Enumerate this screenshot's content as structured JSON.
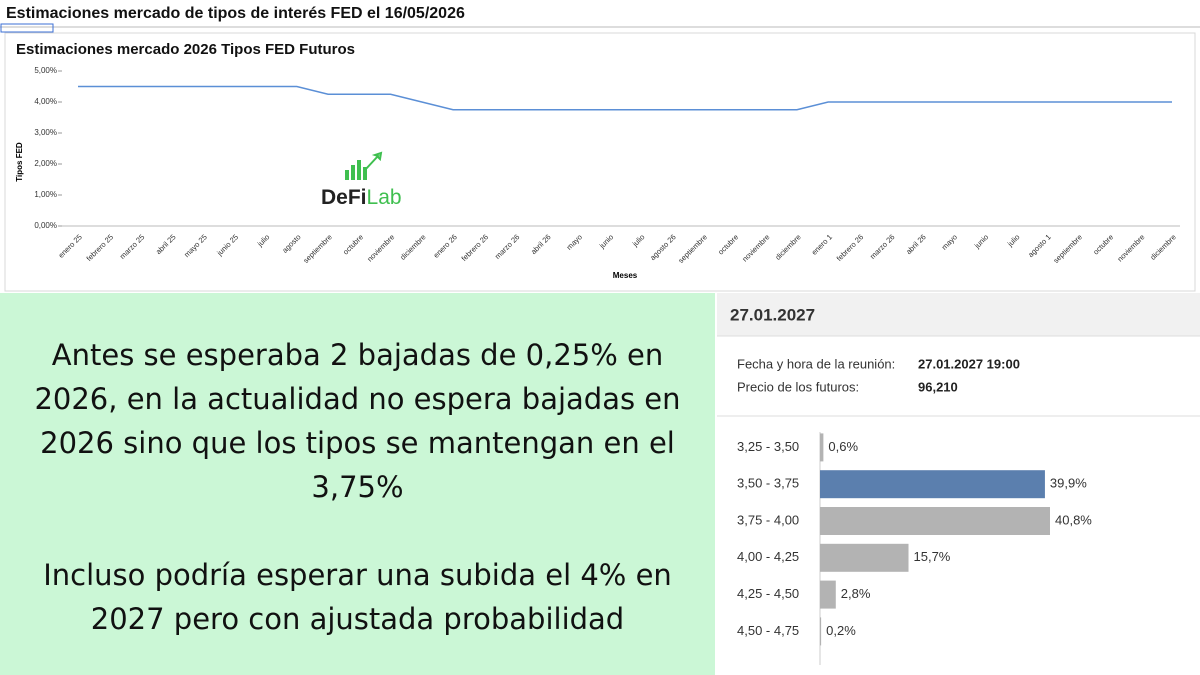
{
  "header": {
    "title": "Estimaciones  mercado de tipos de interés FED el 16/05/2026"
  },
  "logo": {
    "part1": "DeFi",
    "part2": "Lab"
  },
  "chart_data": [
    {
      "type": "line",
      "title": "Estimaciones mercado 2026 Tipos FED Futuros",
      "y_label": "Tipos FED",
      "x_label": "Meses",
      "categories": [
        "enero 25",
        "febrero 25",
        "marzo 25",
        "abril 25",
        "mayo 25",
        "junio 25",
        "julio",
        "agosto",
        "septiembre",
        "octubre",
        "noviembre",
        "diciembre",
        "enero 26",
        "febrero 26",
        "marzo 26",
        "abril 26",
        "mayo",
        "junio",
        "julio",
        "agosto 26",
        "septiembre",
        "octubre",
        "noviembre",
        "diciembre",
        "enero 1",
        "febrero 26",
        "marzo 26",
        "abril 26",
        "mayo",
        "junio",
        "julio",
        "agosto 1",
        "septiembre",
        "octubre",
        "noviembre",
        "diciembre"
      ],
      "series": [
        {
          "name": "Tipos FED",
          "color": "#5b8fd6",
          "values": [
            4.5,
            4.5,
            4.5,
            4.5,
            4.5,
            4.5,
            4.5,
            4.5,
            4.25,
            4.25,
            4.25,
            4.0,
            3.75,
            3.75,
            3.75,
            3.75,
            3.75,
            3.75,
            3.75,
            3.75,
            3.75,
            3.75,
            3.75,
            3.75,
            4.0,
            4.0,
            4.0,
            4.0,
            4.0,
            4.0,
            4.0,
            4.0,
            4.0,
            4.0,
            4.0,
            4.0
          ]
        }
      ],
      "ylim": [
        0,
        5
      ],
      "yticks": [
        {
          "value": 0,
          "label": "0,00%"
        },
        {
          "value": 1,
          "label": "1,00%"
        },
        {
          "value": 2,
          "label": "2,00%"
        },
        {
          "value": 3,
          "label": "3,00%"
        },
        {
          "value": 4,
          "label": "4,00%"
        },
        {
          "value": 5,
          "label": "5,00%"
        }
      ],
      "grid": false
    },
    {
      "type": "hbar",
      "title": "27.01.2027",
      "categories": [
        "3,25 - 3,50",
        "3,50 - 3,75",
        "3,75 - 4,00",
        "4,00 - 4,25",
        "4,25 - 4,50",
        "4,50 - 4,75"
      ],
      "values": [
        0.6,
        39.9,
        40.8,
        15.7,
        2.8,
        0.2
      ],
      "value_labels": [
        "0,6%",
        "39,9%",
        "40,8%",
        "15,7%",
        "2,8%",
        "0,2%"
      ],
      "colors": [
        "#b3b3b3",
        "#5b7fae",
        "#b3b3b3",
        "#b3b3b3",
        "#b3b3b3",
        "#b3b3b3"
      ]
    }
  ],
  "meeting": {
    "rows": [
      [
        "Fecha y hora de la reunión:",
        "27.01.2027 19:00"
      ],
      [
        "Precio de los futuros:",
        "96,210"
      ]
    ]
  },
  "note": {
    "paragraphs": [
      "Antes se esperaba 2 bajadas de 0,25% en 2026, en la actualidad no espera bajadas en 2026 sino que los tipos se mantengan en el 3,75%",
      "Incluso podría esperar una subida el 4% en 2027 pero con ajustada probabilidad"
    ]
  }
}
